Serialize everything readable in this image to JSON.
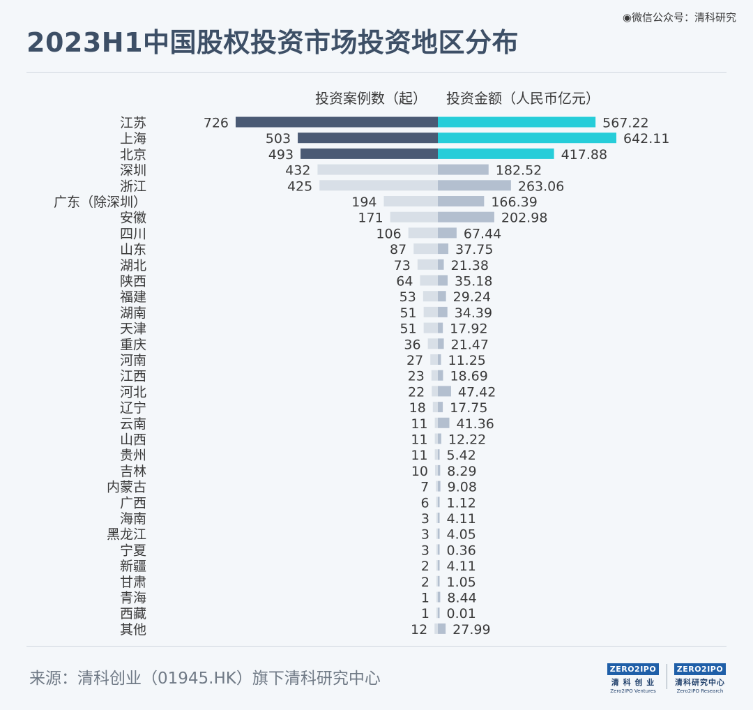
{
  "watermark": "◉微信公众号：清科研究",
  "title": "2023H1中国股权投资市场投资地区分布",
  "source": "来源：清科创业（01945.HK）旗下清科研究中心",
  "logos": [
    {
      "mark": "ZERO2IPO",
      "cn": "清 科 创 业",
      "en": "Zero2IPO Ventures"
    },
    {
      "mark": "ZERO2IPO",
      "cn": "清科研究中心",
      "en": "Zero2IPO Research"
    }
  ],
  "colors": {
    "cases_highlight": "#4a5a74",
    "cases_normal": "#d8dfe7",
    "amount_highlight": "#26cdd9",
    "amount_normal": "#b3bfcf",
    "label_text": "#3a3a3a"
  },
  "chart_data": {
    "type": "bar",
    "orientation": "horizontal-diverging",
    "title": "2023H1中国股权投资市场投资地区分布",
    "categories": [
      "江苏",
      "上海",
      "北京",
      "深圳",
      "浙江",
      "广东（除深圳）",
      "安徽",
      "四川",
      "山东",
      "湖北",
      "陕西",
      "福建",
      "湖南",
      "天津",
      "重庆",
      "河南",
      "江西",
      "河北",
      "辽宁",
      "云南",
      "山西",
      "贵州",
      "吉林",
      "内蒙古",
      "广西",
      "海南",
      "黑龙江",
      "宁夏",
      "新疆",
      "甘肃",
      "青海",
      "西藏",
      "其他"
    ],
    "series": [
      {
        "name": "投资案例数（起）",
        "direction": "left",
        "values": [
          726,
          503,
          493,
          432,
          425,
          194,
          171,
          106,
          87,
          73,
          64,
          53,
          51,
          51,
          36,
          27,
          23,
          22,
          18,
          11,
          11,
          11,
          10,
          7,
          6,
          3,
          3,
          3,
          2,
          2,
          1,
          1,
          12
        ]
      },
      {
        "name": "投资金额（人民币亿元）",
        "direction": "right",
        "values": [
          "567.22",
          "642.11",
          "417.88",
          "182.52",
          "263.06",
          "166.39",
          "202.98",
          "67.44",
          "37.75",
          "21.38",
          "35.18",
          "29.24",
          "34.39",
          "17.92",
          "21.47",
          "11.25",
          "18.69",
          "47.42",
          "17.75",
          "41.36",
          "12.22",
          "5.42",
          "8.29",
          "9.08",
          "1.12",
          "4.11",
          "4.05",
          "0.36",
          "4.11",
          "1.05",
          "8.44",
          "0.01",
          "27.99"
        ]
      }
    ],
    "highlight_top_n": 3,
    "legend_position": "top-center",
    "grid": false
  }
}
